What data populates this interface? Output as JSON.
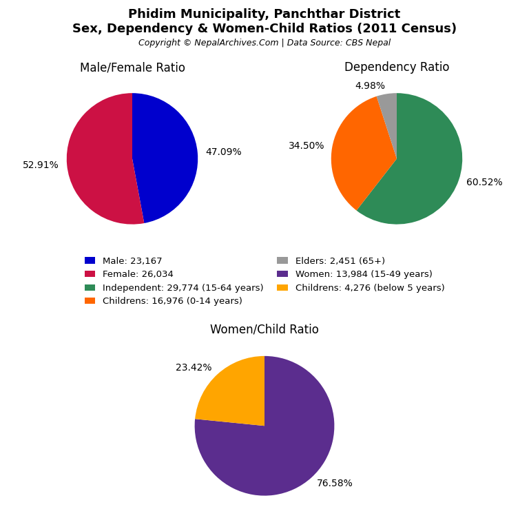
{
  "title": "Phidim Municipality, Panchthar District",
  "subtitle": "Sex, Dependency & Women-Child Ratios (2011 Census)",
  "annotations": [
    "Copyright © NepalArchives.Com | Data Source: CBS Nepal"
  ],
  "legend": "center",
  "chart_data": [
    {
      "type": "pie",
      "title": "Male/Female Ratio",
      "categories": [
        "Male: 23,167",
        "Female: 26,034"
      ],
      "values": [
        47.09,
        52.91
      ],
      "value_labels": [
        "47.09%",
        "52.91%"
      ],
      "colors": [
        "#0000CD",
        "#CC1144"
      ],
      "data_labels": true
    },
    {
      "type": "pie",
      "title": "Dependency Ratio",
      "categories": [
        "Independent: 29,774 (15-64 years)",
        "Childrens: 16,976 (0-14 years)",
        "Elders: 2,451 (65+)"
      ],
      "values": [
        60.52,
        34.5,
        4.98
      ],
      "value_labels": [
        "60.52%",
        "34.50%",
        "4.98%"
      ],
      "colors": [
        "#2E8B57",
        "#FF6600",
        "#999999"
      ],
      "data_labels": true
    },
    {
      "type": "pie",
      "title": "Women/Child Ratio",
      "categories": [
        "Women: 13,984 (15-49 years)",
        "Childrens: 4,276 (below 5 years)"
      ],
      "values": [
        76.58,
        23.42
      ],
      "value_labels": [
        "76.58%",
        "23.42%"
      ],
      "colors": [
        "#5B2D8E",
        "#FFA500"
      ],
      "data_labels": true
    }
  ]
}
